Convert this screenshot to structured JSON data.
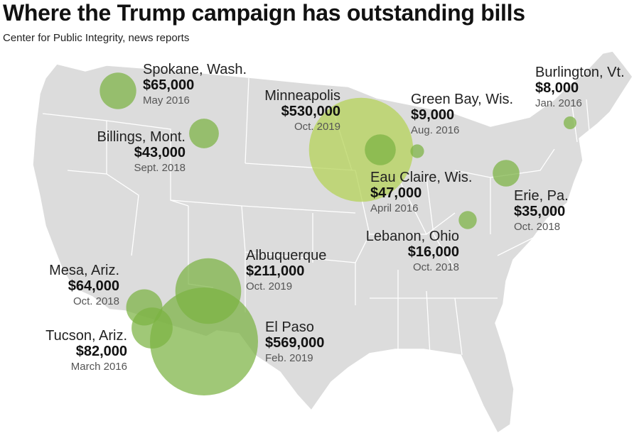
{
  "header": {
    "title": "Where the Trump campaign has outstanding bills",
    "source": "Center for Public Integrity, news reports"
  },
  "colors": {
    "land": "#dcdcdc",
    "borders": "#ffffff",
    "bubble_small": "#7cb342",
    "bubble_large": "#b5d35a"
  },
  "cities": [
    {
      "id": "spokane",
      "city": "Spokane, Wash.",
      "amount": "$65,000",
      "date": "May 2016",
      "amount_value": 65000
    },
    {
      "id": "billings",
      "city": "Billings, Mont.",
      "amount": "$43,000",
      "date": "Sept. 2018",
      "amount_value": 43000
    },
    {
      "id": "minneapolis",
      "city": "Minneapolis",
      "amount": "$530,000",
      "date": "Oct. 2019",
      "amount_value": 530000
    },
    {
      "id": "greenbay",
      "city": "Green Bay, Wis.",
      "amount": "$9,000",
      "date": "Aug. 2016",
      "amount_value": 9000
    },
    {
      "id": "burlington",
      "city": "Burlington, Vt.",
      "amount": "$8,000",
      "date": "Jan. 2016",
      "amount_value": 8000
    },
    {
      "id": "eauclaire",
      "city": "Eau Claire, Wis.",
      "amount": "$47,000",
      "date": "April 2016",
      "amount_value": 47000
    },
    {
      "id": "erie",
      "city": "Erie, Pa.",
      "amount": "$35,000",
      "date": "Oct. 2018",
      "amount_value": 35000
    },
    {
      "id": "lebanon",
      "city": "Lebanon, Ohio",
      "amount": "$16,000",
      "date": "Oct. 2018",
      "amount_value": 16000
    },
    {
      "id": "albuquerque",
      "city": "Albuquerque",
      "amount": "$211,000",
      "date": "Oct. 2019",
      "amount_value": 211000
    },
    {
      "id": "mesa",
      "city": "Mesa, Ariz.",
      "amount": "$64,000",
      "date": "Oct. 2018",
      "amount_value": 64000
    },
    {
      "id": "tucson",
      "city": "Tucson, Ariz.",
      "amount": "$82,000",
      "date": "March 2016",
      "amount_value": 82000
    },
    {
      "id": "elpaso",
      "city": "El Paso",
      "amount": "$569,000",
      "date": "Feb. 2019",
      "amount_value": 569000
    }
  ]
}
